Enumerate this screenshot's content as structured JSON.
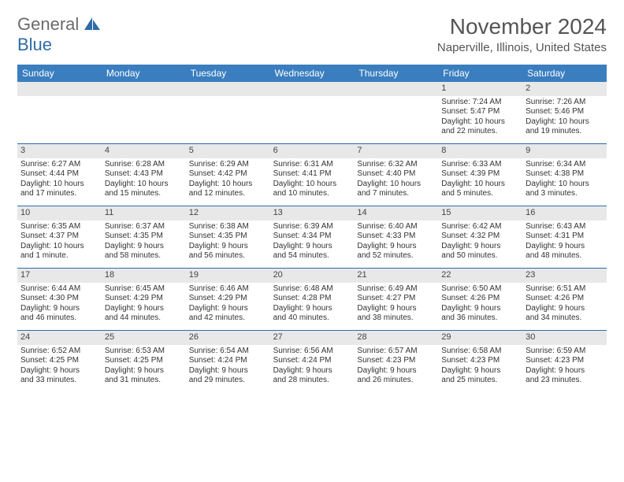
{
  "logo": {
    "word1": "General",
    "word2": "Blue"
  },
  "title": "November 2024",
  "location": "Naperville, Illinois, United States",
  "colors": {
    "header_bg": "#3a7ebf",
    "header_text": "#ffffff",
    "rule": "#2f6ca8",
    "daynum_bg": "#e8e8e8",
    "body_text": "#333333",
    "title_text": "#555555"
  },
  "weekdays": [
    "Sunday",
    "Monday",
    "Tuesday",
    "Wednesday",
    "Thursday",
    "Friday",
    "Saturday"
  ],
  "weeks": [
    [
      null,
      null,
      null,
      null,
      null,
      {
        "n": "1",
        "sr": "Sunrise: 7:24 AM",
        "ss": "Sunset: 5:47 PM",
        "d1": "Daylight: 10 hours",
        "d2": "and 22 minutes."
      },
      {
        "n": "2",
        "sr": "Sunrise: 7:26 AM",
        "ss": "Sunset: 5:46 PM",
        "d1": "Daylight: 10 hours",
        "d2": "and 19 minutes."
      }
    ],
    [
      {
        "n": "3",
        "sr": "Sunrise: 6:27 AM",
        "ss": "Sunset: 4:44 PM",
        "d1": "Daylight: 10 hours",
        "d2": "and 17 minutes."
      },
      {
        "n": "4",
        "sr": "Sunrise: 6:28 AM",
        "ss": "Sunset: 4:43 PM",
        "d1": "Daylight: 10 hours",
        "d2": "and 15 minutes."
      },
      {
        "n": "5",
        "sr": "Sunrise: 6:29 AM",
        "ss": "Sunset: 4:42 PM",
        "d1": "Daylight: 10 hours",
        "d2": "and 12 minutes."
      },
      {
        "n": "6",
        "sr": "Sunrise: 6:31 AM",
        "ss": "Sunset: 4:41 PM",
        "d1": "Daylight: 10 hours",
        "d2": "and 10 minutes."
      },
      {
        "n": "7",
        "sr": "Sunrise: 6:32 AM",
        "ss": "Sunset: 4:40 PM",
        "d1": "Daylight: 10 hours",
        "d2": "and 7 minutes."
      },
      {
        "n": "8",
        "sr": "Sunrise: 6:33 AM",
        "ss": "Sunset: 4:39 PM",
        "d1": "Daylight: 10 hours",
        "d2": "and 5 minutes."
      },
      {
        "n": "9",
        "sr": "Sunrise: 6:34 AM",
        "ss": "Sunset: 4:38 PM",
        "d1": "Daylight: 10 hours",
        "d2": "and 3 minutes."
      }
    ],
    [
      {
        "n": "10",
        "sr": "Sunrise: 6:35 AM",
        "ss": "Sunset: 4:37 PM",
        "d1": "Daylight: 10 hours",
        "d2": "and 1 minute."
      },
      {
        "n": "11",
        "sr": "Sunrise: 6:37 AM",
        "ss": "Sunset: 4:35 PM",
        "d1": "Daylight: 9 hours",
        "d2": "and 58 minutes."
      },
      {
        "n": "12",
        "sr": "Sunrise: 6:38 AM",
        "ss": "Sunset: 4:35 PM",
        "d1": "Daylight: 9 hours",
        "d2": "and 56 minutes."
      },
      {
        "n": "13",
        "sr": "Sunrise: 6:39 AM",
        "ss": "Sunset: 4:34 PM",
        "d1": "Daylight: 9 hours",
        "d2": "and 54 minutes."
      },
      {
        "n": "14",
        "sr": "Sunrise: 6:40 AM",
        "ss": "Sunset: 4:33 PM",
        "d1": "Daylight: 9 hours",
        "d2": "and 52 minutes."
      },
      {
        "n": "15",
        "sr": "Sunrise: 6:42 AM",
        "ss": "Sunset: 4:32 PM",
        "d1": "Daylight: 9 hours",
        "d2": "and 50 minutes."
      },
      {
        "n": "16",
        "sr": "Sunrise: 6:43 AM",
        "ss": "Sunset: 4:31 PM",
        "d1": "Daylight: 9 hours",
        "d2": "and 48 minutes."
      }
    ],
    [
      {
        "n": "17",
        "sr": "Sunrise: 6:44 AM",
        "ss": "Sunset: 4:30 PM",
        "d1": "Daylight: 9 hours",
        "d2": "and 46 minutes."
      },
      {
        "n": "18",
        "sr": "Sunrise: 6:45 AM",
        "ss": "Sunset: 4:29 PM",
        "d1": "Daylight: 9 hours",
        "d2": "and 44 minutes."
      },
      {
        "n": "19",
        "sr": "Sunrise: 6:46 AM",
        "ss": "Sunset: 4:29 PM",
        "d1": "Daylight: 9 hours",
        "d2": "and 42 minutes."
      },
      {
        "n": "20",
        "sr": "Sunrise: 6:48 AM",
        "ss": "Sunset: 4:28 PM",
        "d1": "Daylight: 9 hours",
        "d2": "and 40 minutes."
      },
      {
        "n": "21",
        "sr": "Sunrise: 6:49 AM",
        "ss": "Sunset: 4:27 PM",
        "d1": "Daylight: 9 hours",
        "d2": "and 38 minutes."
      },
      {
        "n": "22",
        "sr": "Sunrise: 6:50 AM",
        "ss": "Sunset: 4:26 PM",
        "d1": "Daylight: 9 hours",
        "d2": "and 36 minutes."
      },
      {
        "n": "23",
        "sr": "Sunrise: 6:51 AM",
        "ss": "Sunset: 4:26 PM",
        "d1": "Daylight: 9 hours",
        "d2": "and 34 minutes."
      }
    ],
    [
      {
        "n": "24",
        "sr": "Sunrise: 6:52 AM",
        "ss": "Sunset: 4:25 PM",
        "d1": "Daylight: 9 hours",
        "d2": "and 33 minutes."
      },
      {
        "n": "25",
        "sr": "Sunrise: 6:53 AM",
        "ss": "Sunset: 4:25 PM",
        "d1": "Daylight: 9 hours",
        "d2": "and 31 minutes."
      },
      {
        "n": "26",
        "sr": "Sunrise: 6:54 AM",
        "ss": "Sunset: 4:24 PM",
        "d1": "Daylight: 9 hours",
        "d2": "and 29 minutes."
      },
      {
        "n": "27",
        "sr": "Sunrise: 6:56 AM",
        "ss": "Sunset: 4:24 PM",
        "d1": "Daylight: 9 hours",
        "d2": "and 28 minutes."
      },
      {
        "n": "28",
        "sr": "Sunrise: 6:57 AM",
        "ss": "Sunset: 4:23 PM",
        "d1": "Daylight: 9 hours",
        "d2": "and 26 minutes."
      },
      {
        "n": "29",
        "sr": "Sunrise: 6:58 AM",
        "ss": "Sunset: 4:23 PM",
        "d1": "Daylight: 9 hours",
        "d2": "and 25 minutes."
      },
      {
        "n": "30",
        "sr": "Sunrise: 6:59 AM",
        "ss": "Sunset: 4:23 PM",
        "d1": "Daylight: 9 hours",
        "d2": "and 23 minutes."
      }
    ]
  ]
}
